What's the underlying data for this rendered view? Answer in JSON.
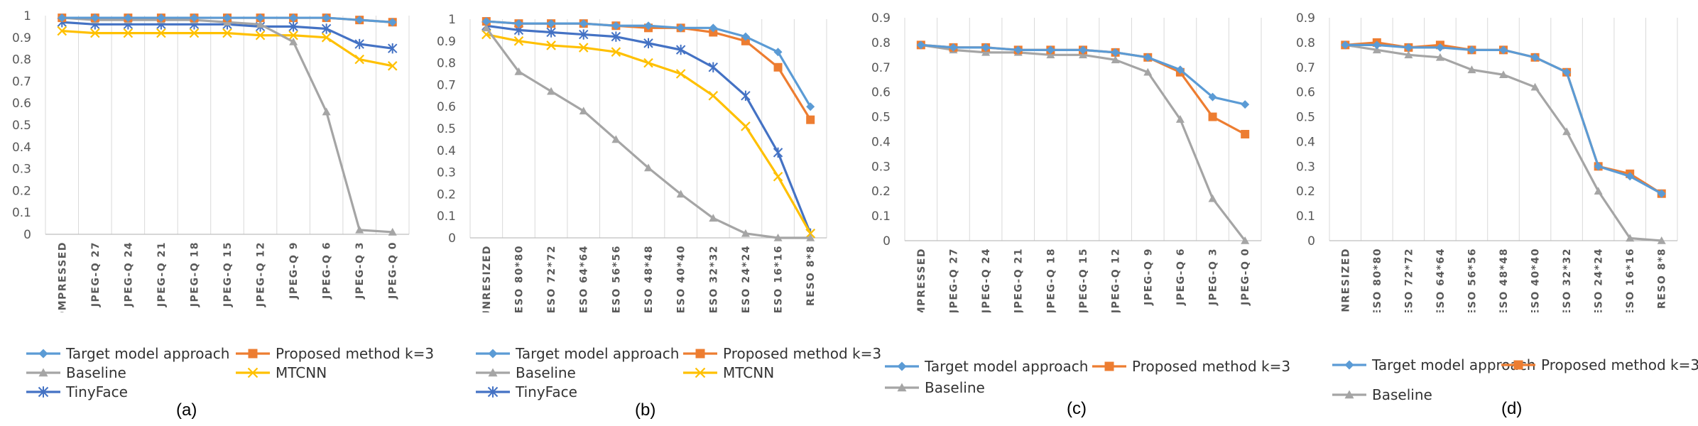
{
  "styles": {
    "Target model approach": {
      "color": "#5B9BD5",
      "marker": "diamond"
    },
    "Proposed method k=3": {
      "color": "#ED7D31",
      "marker": "square"
    },
    "Baseline": {
      "color": "#A5A5A5",
      "marker": "triangle"
    },
    "MTCNN": {
      "color": "#FFC000",
      "marker": "x"
    },
    "TinyFace": {
      "color": "#4472C4",
      "marker": "star"
    }
  },
  "chart_data": [
    {
      "type": "line",
      "caption": "(a)",
      "categories": [
        "UNCOMPRESSED",
        "JPEG-Q 27",
        "JPEG-Q 24",
        "JPEG-Q 21",
        "JPEG-Q 18",
        "JPEG-Q 15",
        "JPEG-Q 12",
        "JPEG-Q 9",
        "JPEG-Q 6",
        "JPEG-Q 3",
        "JPEG-Q 0"
      ],
      "ylim": [
        0,
        1
      ],
      "yticks": [
        "0",
        "0.1",
        "0.2",
        "0.3",
        "0.4",
        "0.5",
        "0.6",
        "0.7",
        "0.8",
        "0.9",
        "1"
      ],
      "series": [
        {
          "name": "Target model approach",
          "values": [
            0.99,
            0.99,
            0.99,
            0.99,
            0.99,
            0.99,
            0.99,
            0.99,
            0.99,
            0.98,
            0.97
          ]
        },
        {
          "name": "Proposed method k=3",
          "values": [
            0.99,
            0.99,
            0.99,
            0.99,
            0.99,
            0.99,
            0.99,
            0.99,
            0.99,
            0.98,
            0.97
          ]
        },
        {
          "name": "Baseline",
          "values": [
            0.99,
            0.98,
            0.98,
            0.98,
            0.98,
            0.97,
            0.96,
            0.88,
            0.56,
            0.02,
            0.01
          ]
        },
        {
          "name": "MTCNN",
          "values": [
            0.93,
            0.92,
            0.92,
            0.92,
            0.92,
            0.92,
            0.91,
            0.91,
            0.9,
            0.8,
            0.77
          ]
        },
        {
          "name": "TinyFace",
          "values": [
            0.97,
            0.96,
            0.96,
            0.96,
            0.96,
            0.96,
            0.95,
            0.95,
            0.94,
            0.87,
            0.85
          ]
        }
      ]
    },
    {
      "type": "line",
      "caption": "(b)",
      "categories": [
        "UNRESIZED",
        "RESO 80*80",
        "RESO 72*72",
        "RESO 64*64",
        "RESO 56*56",
        "RESO 48*48",
        "RESO 40*40",
        "RESO 32*32",
        "RESO 24*24",
        "RESO 16*16",
        "RESO 8*8"
      ],
      "ylim": [
        0,
        1
      ],
      "yticks": [
        "0",
        "0.1",
        "0.2",
        "0.3",
        "0.4",
        "0.5",
        "0.6",
        "0.7",
        "0.8",
        "0.9",
        "1"
      ],
      "series": [
        {
          "name": "Target model approach",
          "values": [
            0.99,
            0.98,
            0.98,
            0.98,
            0.97,
            0.97,
            0.96,
            0.96,
            0.92,
            0.85,
            0.6
          ]
        },
        {
          "name": "Proposed method k=3",
          "values": [
            0.99,
            0.98,
            0.98,
            0.98,
            0.97,
            0.96,
            0.96,
            0.94,
            0.9,
            0.78,
            0.54
          ]
        },
        {
          "name": "Baseline",
          "values": [
            0.96,
            0.76,
            0.67,
            0.58,
            0.45,
            0.32,
            0.2,
            0.09,
            0.02,
            0.0,
            0.0
          ]
        },
        {
          "name": "MTCNN",
          "values": [
            0.93,
            0.9,
            0.88,
            0.87,
            0.85,
            0.8,
            0.75,
            0.65,
            0.51,
            0.28,
            0.02
          ]
        },
        {
          "name": "TinyFace",
          "values": [
            0.97,
            0.95,
            0.94,
            0.93,
            0.92,
            0.89,
            0.86,
            0.78,
            0.65,
            0.39,
            0.02
          ]
        }
      ]
    },
    {
      "type": "line",
      "caption": "(c)",
      "categories": [
        "UNCOMPRESSED",
        "JPEG-Q 27",
        "JPEG-Q 24",
        "JPEG-Q 21",
        "JPEG-Q 18",
        "JPEG-Q 15",
        "JPEG-Q 12",
        "JPEG-Q 9",
        "JPEG-Q 6",
        "JPEG-Q 3",
        "JPEG-Q 0"
      ],
      "ylim": [
        0,
        0.9
      ],
      "yticks": [
        "0",
        "0.1",
        "0.2",
        "0.3",
        "0.4",
        "0.5",
        "0.6",
        "0.7",
        "0.8",
        "0.9"
      ],
      "series": [
        {
          "name": "Target model approach",
          "values": [
            0.79,
            0.78,
            0.78,
            0.77,
            0.77,
            0.77,
            0.76,
            0.74,
            0.69,
            0.58,
            0.55
          ]
        },
        {
          "name": "Proposed method k=3",
          "values": [
            0.79,
            0.78,
            0.78,
            0.77,
            0.77,
            0.77,
            0.76,
            0.74,
            0.68,
            0.5,
            0.43
          ]
        },
        {
          "name": "Baseline",
          "values": [
            0.79,
            0.77,
            0.76,
            0.76,
            0.75,
            0.75,
            0.73,
            0.68,
            0.49,
            0.17,
            0.0
          ]
        }
      ]
    },
    {
      "type": "line",
      "caption": "(d)",
      "categories": [
        "UNRESIZED",
        "RESO 80*80",
        "RESO 72*72",
        "RESO 64*64",
        "RESO 56*56",
        "RESO 48*48",
        "RESO 40*40",
        "RESO 32*32",
        "RESO 24*24",
        "RESO 16*16",
        "RESO 8*8"
      ],
      "ylim": [
        0,
        0.9
      ],
      "yticks": [
        "0",
        "0.1",
        "0.2",
        "0.3",
        "0.4",
        "0.5",
        "0.6",
        "0.7",
        "0.8",
        "0.9"
      ],
      "series": [
        {
          "name": "Target model approach",
          "values": [
            0.79,
            0.79,
            0.78,
            0.78,
            0.77,
            0.77,
            0.74,
            0.68,
            0.3,
            0.26,
            0.19
          ]
        },
        {
          "name": "Proposed method k=3",
          "values": [
            0.79,
            0.8,
            0.78,
            0.79,
            0.77,
            0.77,
            0.74,
            0.68,
            0.3,
            0.27,
            0.19
          ]
        },
        {
          "name": "Baseline",
          "values": [
            0.79,
            0.77,
            0.75,
            0.74,
            0.69,
            0.67,
            0.62,
            0.44,
            0.2,
            0.01,
            0.0
          ]
        }
      ]
    }
  ]
}
